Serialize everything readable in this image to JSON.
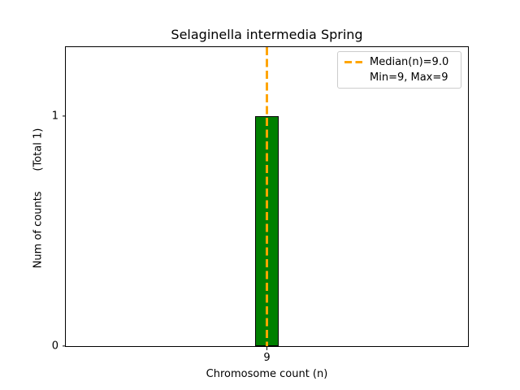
{
  "chart_data": {
    "type": "bar",
    "title": "Selaginella intermedia Spring",
    "xlabel": "Chromosome count (n)",
    "ylabel": "Num of counts      (Total 1)",
    "categories": [
      9
    ],
    "values": [
      1
    ],
    "xticks": [
      "9"
    ],
    "yticks": [
      {
        "value": 0,
        "label": "0"
      },
      {
        "value": 1,
        "label": "1"
      }
    ],
    "ylim": [
      0,
      1.3
    ],
    "grid": false,
    "bar_color": "#008000",
    "bar_edge_color": "#000000",
    "median_line": {
      "x": 9,
      "color": "#FFA500",
      "style": "dashed"
    },
    "legend": {
      "position": "upper right",
      "entries": [
        {
          "label": "Median(n)=9.0",
          "sample": "orange-dashed-line"
        },
        {
          "label": "Min=9, Max=9",
          "sample": "none"
        }
      ]
    }
  }
}
